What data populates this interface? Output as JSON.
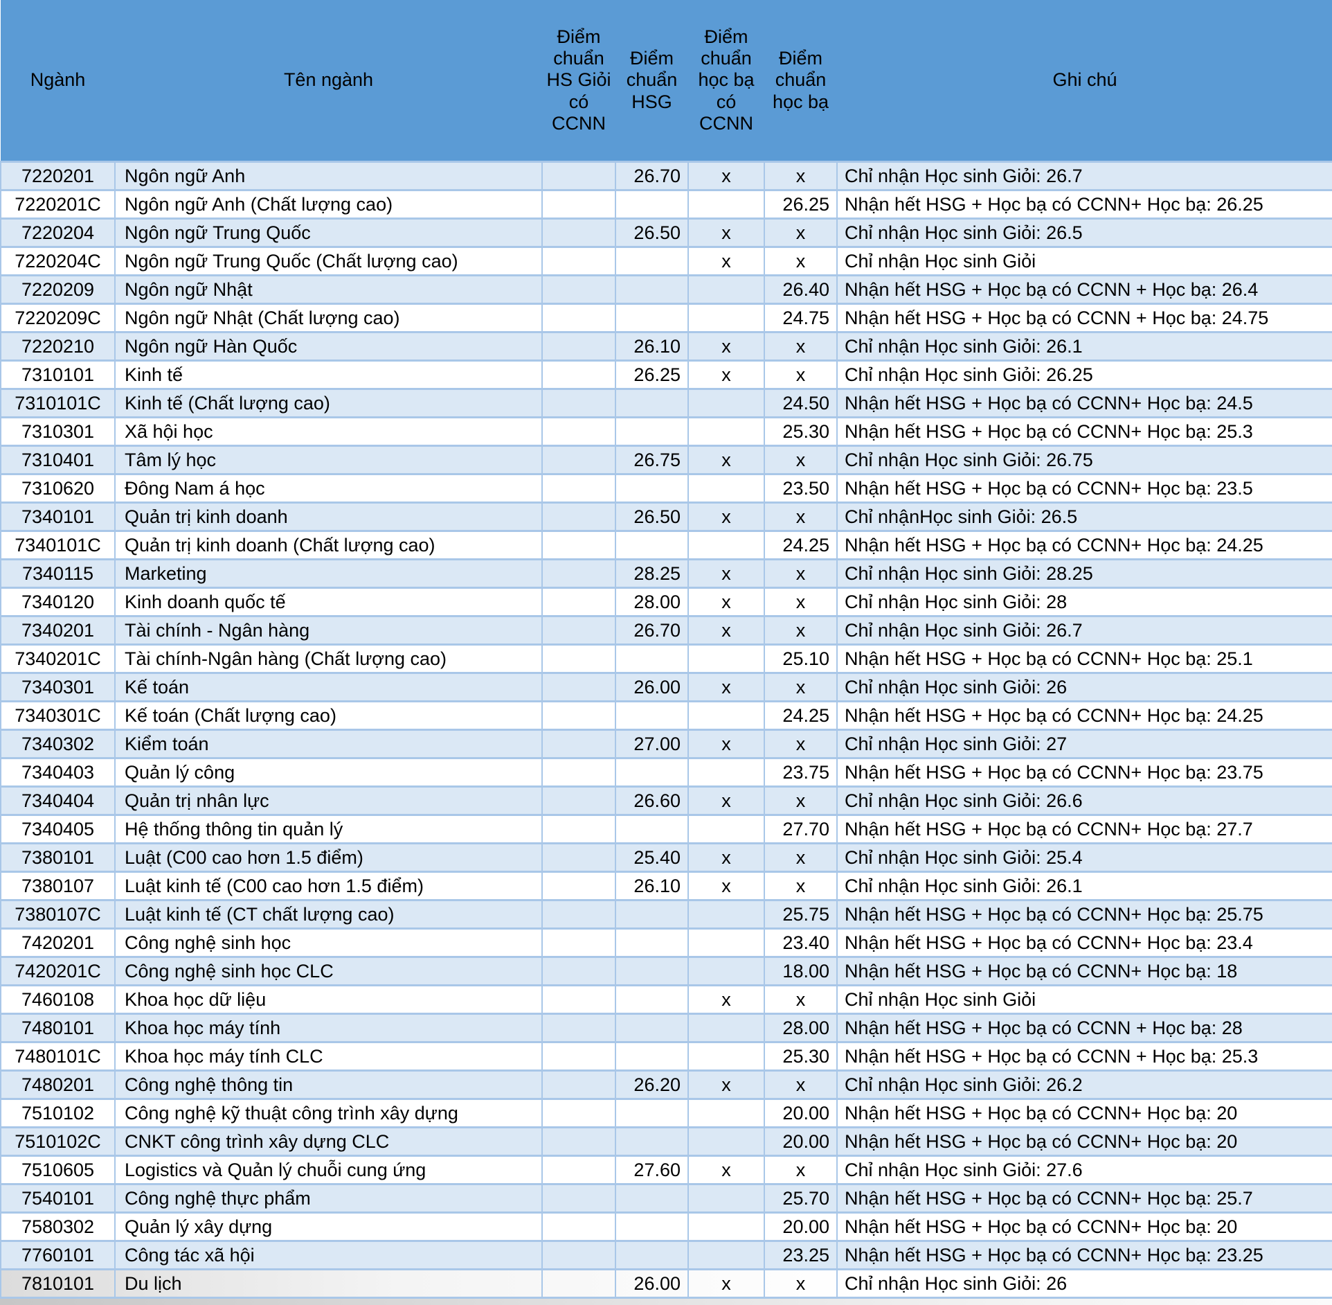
{
  "colors": {
    "header_bg": "#5b9bd5",
    "row_alt_bg": "#dbe8f5",
    "row_bg": "#ffffff",
    "border": "#a9c7e8",
    "text": "#000000"
  },
  "chart_data": {
    "type": "table",
    "columns": [
      "Ngành",
      "Tên ngành",
      "Điểm chuẩn HS Giỏi có CCNN",
      "Điểm chuẩn HSG",
      "Điểm chuẩn học bạ có CCNN",
      "Điểm chuẩn học bạ",
      "Ghi chú"
    ],
    "rows": [
      {
        "code": "7220201",
        "name": "Ngôn ngữ Anh",
        "diem_hsg_ccnn": "",
        "diem_hsg": "26.70",
        "diem_hocba_ccnn": "x",
        "diem_hocba": "x",
        "ghi_chu": "Chỉ nhận Học sinh Giỏi: 26.7"
      },
      {
        "code": "7220201C",
        "name": "Ngôn ngữ Anh (Chất lượng cao)",
        "diem_hsg_ccnn": "",
        "diem_hsg": "",
        "diem_hocba_ccnn": "",
        "diem_hocba": "26.25",
        "ghi_chu": "Nhận hết HSG + Học bạ có CCNN+ Học bạ: 26.25"
      },
      {
        "code": "7220204",
        "name": "Ngôn ngữ Trung Quốc",
        "diem_hsg_ccnn": "",
        "diem_hsg": "26.50",
        "diem_hocba_ccnn": "x",
        "diem_hocba": "x",
        "ghi_chu": "Chỉ nhận Học sinh Giỏi: 26.5"
      },
      {
        "code": "7220204C",
        "name": "Ngôn ngữ Trung Quốc (Chất lượng cao)",
        "diem_hsg_ccnn": "",
        "diem_hsg": "",
        "diem_hocba_ccnn": "x",
        "diem_hocba": "x",
        "ghi_chu": "Chỉ nhận Học sinh Giỏi"
      },
      {
        "code": "7220209",
        "name": "Ngôn ngữ Nhật",
        "diem_hsg_ccnn": "",
        "diem_hsg": "",
        "diem_hocba_ccnn": "",
        "diem_hocba": "26.40",
        "ghi_chu": "Nhận hết HSG + Học bạ có CCNN + Học bạ: 26.4"
      },
      {
        "code": "7220209C",
        "name": "Ngôn ngữ Nhật  (Chất lượng cao)",
        "diem_hsg_ccnn": "",
        "diem_hsg": "",
        "diem_hocba_ccnn": "",
        "diem_hocba": "24.75",
        "ghi_chu": "Nhận hết HSG + Học bạ có CCNN + Học bạ: 24.75"
      },
      {
        "code": "7220210",
        "name": "Ngôn ngữ Hàn Quốc",
        "diem_hsg_ccnn": "",
        "diem_hsg": "26.10",
        "diem_hocba_ccnn": "x",
        "diem_hocba": "x",
        "ghi_chu": "Chỉ nhận Học sinh Giỏi: 26.1"
      },
      {
        "code": "7310101",
        "name": "Kinh tế",
        "diem_hsg_ccnn": "",
        "diem_hsg": "26.25",
        "diem_hocba_ccnn": "x",
        "diem_hocba": "x",
        "ghi_chu": "Chỉ nhận Học sinh Giỏi: 26.25"
      },
      {
        "code": "7310101C",
        "name": "Kinh tế (Chất lượng cao)",
        "diem_hsg_ccnn": "",
        "diem_hsg": "",
        "diem_hocba_ccnn": "",
        "diem_hocba": "24.50",
        "ghi_chu": "Nhận hết HSG + Học bạ có CCNN+ Học bạ: 24.5"
      },
      {
        "code": "7310301",
        "name": "Xã hội học",
        "diem_hsg_ccnn": "",
        "diem_hsg": "",
        "diem_hocba_ccnn": "",
        "diem_hocba": "25.30",
        "ghi_chu": "Nhận hết HSG + Học bạ có CCNN+ Học bạ: 25.3"
      },
      {
        "code": "7310401",
        "name": "Tâm lý học",
        "diem_hsg_ccnn": "",
        "diem_hsg": "26.75",
        "diem_hocba_ccnn": "x",
        "diem_hocba": "x",
        "ghi_chu": "Chỉ nhận Học sinh Giỏi: 26.75"
      },
      {
        "code": "7310620",
        "name": "Đông Nam á học",
        "diem_hsg_ccnn": "",
        "diem_hsg": "",
        "diem_hocba_ccnn": "",
        "diem_hocba": "23.50",
        "ghi_chu": "Nhận hết HSG + Học bạ có CCNN+ Học bạ: 23.5"
      },
      {
        "code": "7340101",
        "name": "Quản trị kinh doanh",
        "diem_hsg_ccnn": "",
        "diem_hsg": "26.50",
        "diem_hocba_ccnn": "x",
        "diem_hocba": "x",
        "ghi_chu": "Chỉ nhậnHọc sinh Giỏi: 26.5"
      },
      {
        "code": "7340101C",
        "name": "Quản trị kinh doanh (Chất lượng cao)",
        "diem_hsg_ccnn": "",
        "diem_hsg": "",
        "diem_hocba_ccnn": "",
        "diem_hocba": "24.25",
        "ghi_chu": "Nhận hết HSG + Học bạ có CCNN+ Học bạ: 24.25"
      },
      {
        "code": "7340115",
        "name": "Marketing",
        "diem_hsg_ccnn": "",
        "diem_hsg": "28.25",
        "diem_hocba_ccnn": "x",
        "diem_hocba": "x",
        "ghi_chu": "Chỉ nhận Học sinh Giỏi: 28.25"
      },
      {
        "code": "7340120",
        "name": "Kinh doanh quốc tế",
        "diem_hsg_ccnn": "",
        "diem_hsg": "28.00",
        "diem_hocba_ccnn": "x",
        "diem_hocba": "x",
        "ghi_chu": "Chỉ nhận Học sinh Giỏi: 28"
      },
      {
        "code": "7340201",
        "name": "Tài chính - Ngân hàng",
        "diem_hsg_ccnn": "",
        "diem_hsg": "26.70",
        "diem_hocba_ccnn": "x",
        "diem_hocba": "x",
        "ghi_chu": "Chỉ nhận Học sinh Giỏi: 26.7"
      },
      {
        "code": "7340201C",
        "name": "Tài chính-Ngân hàng (Chất lượng cao)",
        "diem_hsg_ccnn": "",
        "diem_hsg": "",
        "diem_hocba_ccnn": "",
        "diem_hocba": "25.10",
        "ghi_chu": "Nhận hết HSG + Học bạ có CCNN+ Học bạ: 25.1"
      },
      {
        "code": "7340301",
        "name": "Kế toán",
        "diem_hsg_ccnn": "",
        "diem_hsg": "26.00",
        "diem_hocba_ccnn": "x",
        "diem_hocba": "x",
        "ghi_chu": "Chỉ nhận Học sinh Giỏi: 26"
      },
      {
        "code": "7340301C",
        "name": "Kế toán (Chất lượng cao)",
        "diem_hsg_ccnn": "",
        "diem_hsg": "",
        "diem_hocba_ccnn": "",
        "diem_hocba": "24.25",
        "ghi_chu": "Nhận hết HSG + Học bạ có CCNN+ Học bạ: 24.25"
      },
      {
        "code": "7340302",
        "name": "Kiểm toán",
        "diem_hsg_ccnn": "",
        "diem_hsg": "27.00",
        "diem_hocba_ccnn": "x",
        "diem_hocba": "x",
        "ghi_chu": "Chỉ nhận Học sinh Giỏi: 27"
      },
      {
        "code": "7340403",
        "name": "Quản lý công",
        "diem_hsg_ccnn": "",
        "diem_hsg": "",
        "diem_hocba_ccnn": "",
        "diem_hocba": "23.75",
        "ghi_chu": "Nhận hết HSG + Học bạ có CCNN+ Học bạ: 23.75"
      },
      {
        "code": "7340404",
        "name": "Quản trị nhân lực",
        "diem_hsg_ccnn": "",
        "diem_hsg": "26.60",
        "diem_hocba_ccnn": "x",
        "diem_hocba": "x",
        "ghi_chu": "Chỉ nhận Học sinh Giỏi: 26.6"
      },
      {
        "code": "7340405",
        "name": "Hệ thống thông tin quản lý",
        "diem_hsg_ccnn": "",
        "diem_hsg": "",
        "diem_hocba_ccnn": "",
        "diem_hocba": "27.70",
        "ghi_chu": "Nhận hết HSG + Học bạ có CCNN+ Học bạ: 27.7"
      },
      {
        "code": "7380101",
        "name": "Luật (C00 cao hơn 1.5 điểm)",
        "diem_hsg_ccnn": "",
        "diem_hsg": "25.40",
        "diem_hocba_ccnn": "x",
        "diem_hocba": "x",
        "ghi_chu": "Chỉ nhận Học sinh Giỏi: 25.4"
      },
      {
        "code": "7380107",
        "name": "Luật kinh tế (C00 cao hơn 1.5 điểm)",
        "diem_hsg_ccnn": "",
        "diem_hsg": "26.10",
        "diem_hocba_ccnn": "x",
        "diem_hocba": "x",
        "ghi_chu": "Chỉ nhận Học sinh Giỏi: 26.1"
      },
      {
        "code": "7380107C",
        "name": "Luật kinh tế (CT chất lượng cao)",
        "diem_hsg_ccnn": "",
        "diem_hsg": "",
        "diem_hocba_ccnn": "",
        "diem_hocba": "25.75",
        "ghi_chu": "Nhận hết HSG + Học bạ có CCNN+ Học bạ: 25.75"
      },
      {
        "code": "7420201",
        "name": "Công nghệ sinh học",
        "diem_hsg_ccnn": "",
        "diem_hsg": "",
        "diem_hocba_ccnn": "",
        "diem_hocba": "23.40",
        "ghi_chu": "Nhận hết HSG + Học bạ có CCNN+ Học bạ: 23.4"
      },
      {
        "code": "7420201C",
        "name": "Công nghệ sinh học CLC",
        "diem_hsg_ccnn": "",
        "diem_hsg": "",
        "diem_hocba_ccnn": "",
        "diem_hocba": "18.00",
        "ghi_chu": "Nhận hết HSG + Học bạ có CCNN+ Học bạ: 18"
      },
      {
        "code": "7460108",
        "name": "Khoa học dữ liệu",
        "diem_hsg_ccnn": "",
        "diem_hsg": "",
        "diem_hocba_ccnn": "x",
        "diem_hocba": "x",
        "ghi_chu": "Chỉ nhận Học sinh Giỏi"
      },
      {
        "code": "7480101",
        "name": "Khoa học máy tính",
        "diem_hsg_ccnn": "",
        "diem_hsg": "",
        "diem_hocba_ccnn": "",
        "diem_hocba": "28.00",
        "ghi_chu": "Nhận hết HSG + Học bạ có CCNN + Học bạ: 28"
      },
      {
        "code": "7480101C",
        "name": "Khoa học máy tính CLC",
        "diem_hsg_ccnn": "",
        "diem_hsg": "",
        "diem_hocba_ccnn": "",
        "diem_hocba": "25.30",
        "ghi_chu": "Nhận hết HSG + Học bạ có CCNN + Học bạ: 25.3"
      },
      {
        "code": "7480201",
        "name": "Công nghệ thông tin",
        "diem_hsg_ccnn": "",
        "diem_hsg": "26.20",
        "diem_hocba_ccnn": "x",
        "diem_hocba": "x",
        "ghi_chu": "Chỉ nhận Học sinh Giỏi: 26.2"
      },
      {
        "code": "7510102",
        "name": "Công nghệ kỹ thuật công trình xây dựng",
        "diem_hsg_ccnn": "",
        "diem_hsg": "",
        "diem_hocba_ccnn": "",
        "diem_hocba": "20.00",
        "ghi_chu": "Nhận hết HSG + Học bạ có CCNN+ Học bạ: 20"
      },
      {
        "code": "7510102C",
        "name": "CNKT công trình xây dựng CLC",
        "diem_hsg_ccnn": "",
        "diem_hsg": "",
        "diem_hocba_ccnn": "",
        "diem_hocba": "20.00",
        "ghi_chu": "Nhận hết HSG + Học bạ có CCNN+ Học bạ: 20"
      },
      {
        "code": "7510605",
        "name": "Logistics và Quản lý chuỗi cung ứng",
        "diem_hsg_ccnn": "",
        "diem_hsg": "27.60",
        "diem_hocba_ccnn": "x",
        "diem_hocba": "x",
        "ghi_chu": "Chỉ nhận Học sinh Giỏi: 27.6"
      },
      {
        "code": "7540101",
        "name": "Công nghệ thực phẩm",
        "diem_hsg_ccnn": "",
        "diem_hsg": "",
        "diem_hocba_ccnn": "",
        "diem_hocba": "25.70",
        "ghi_chu": "Nhận hết HSG + Học bạ có CCNN+ Học bạ: 25.7"
      },
      {
        "code": "7580302",
        "name": "Quản lý xây dựng",
        "diem_hsg_ccnn": "",
        "diem_hsg": "",
        "diem_hocba_ccnn": "",
        "diem_hocba": "20.00",
        "ghi_chu": "Nhận hết HSG + Học bạ có CCNN+ Học bạ: 20"
      },
      {
        "code": "7760101",
        "name": "Công tác xã hội",
        "diem_hsg_ccnn": "",
        "diem_hsg": "",
        "diem_hocba_ccnn": "",
        "diem_hocba": "23.25",
        "ghi_chu": "Nhận hết HSG + Học bạ có CCNN+ Học bạ: 23.25"
      },
      {
        "code": "7810101",
        "name": "Du lịch",
        "diem_hsg_ccnn": "",
        "diem_hsg": "26.00",
        "diem_hocba_ccnn": "x",
        "diem_hocba": "x",
        "ghi_chu": "Chỉ nhận Học sinh Giỏi: 26"
      }
    ]
  }
}
